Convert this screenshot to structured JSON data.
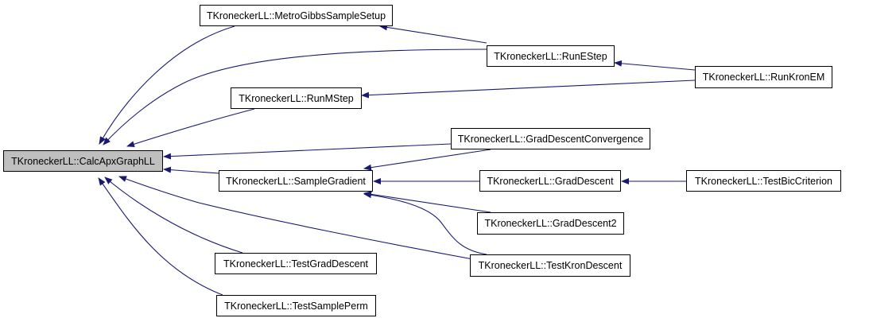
{
  "graph": {
    "edge_color": "#191970",
    "current_fill": "#bfbfbf",
    "nodes": [
      {
        "id": "calc",
        "label": "TKroneckerLL::CalcApxGraphLL",
        "current": true
      },
      {
        "id": "metro",
        "label": "TKroneckerLL::MetroGibbsSampleSetup"
      },
      {
        "id": "mstep",
        "label": "TKroneckerLL::RunMStep"
      },
      {
        "id": "sgrad",
        "label": "TKroneckerLL::SampleGradient"
      },
      {
        "id": "tgd",
        "label": "TKroneckerLL::TestGradDescent"
      },
      {
        "id": "tsp",
        "label": "TKroneckerLL::TestSamplePerm"
      },
      {
        "id": "estep",
        "label": "TKroneckerLL::RunEStep"
      },
      {
        "id": "kronem",
        "label": "TKroneckerLL::RunKronEM"
      },
      {
        "id": "gdc",
        "label": "TKroneckerLL::GradDescentConvergence"
      },
      {
        "id": "gd",
        "label": "TKroneckerLL::GradDescent"
      },
      {
        "id": "gd2",
        "label": "TKroneckerLL::GradDescent2"
      },
      {
        "id": "tkd",
        "label": "TKroneckerLL::TestKronDescent"
      },
      {
        "id": "tbic",
        "label": "TKroneckerLL::TestBicCriterion"
      }
    ],
    "edges": [
      {
        "from": "metro",
        "to": "calc"
      },
      {
        "from": "estep",
        "to": "calc"
      },
      {
        "from": "mstep",
        "to": "calc"
      },
      {
        "from": "gdc",
        "to": "calc"
      },
      {
        "from": "sgrad",
        "to": "calc"
      },
      {
        "from": "tkd",
        "to": "calc"
      },
      {
        "from": "tgd",
        "to": "calc"
      },
      {
        "from": "tsp",
        "to": "calc"
      },
      {
        "from": "estep",
        "to": "metro"
      },
      {
        "from": "kronem",
        "to": "estep"
      },
      {
        "from": "kronem",
        "to": "mstep"
      },
      {
        "from": "gdc",
        "to": "sgrad"
      },
      {
        "from": "gd",
        "to": "sgrad"
      },
      {
        "from": "gd2",
        "to": "sgrad"
      },
      {
        "from": "tkd",
        "to": "sgrad"
      },
      {
        "from": "tbic",
        "to": "gd"
      }
    ]
  }
}
